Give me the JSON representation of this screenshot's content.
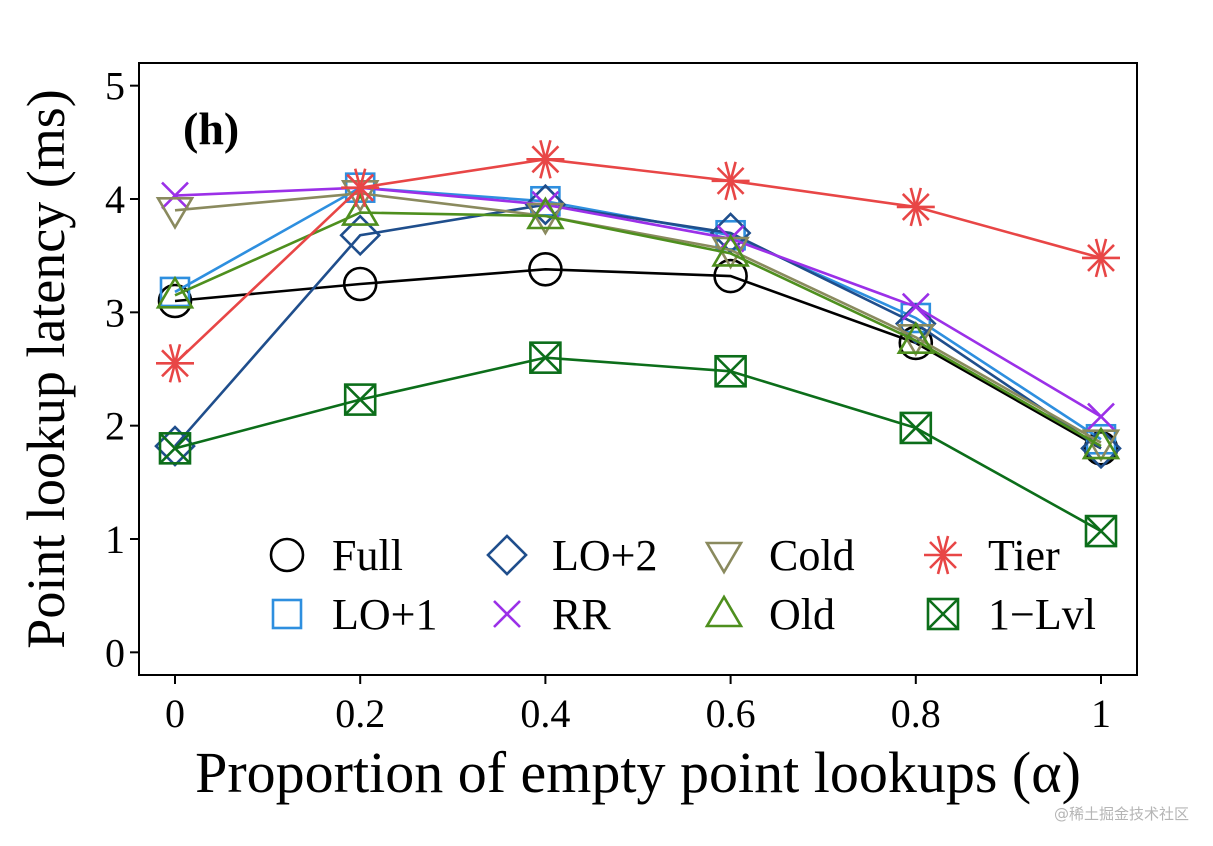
{
  "chart_data": {
    "type": "line",
    "panel_label": "(h)",
    "xlabel": "Proportion of empty point lookups (α)",
    "ylabel": "Point lookup latency (ms)",
    "x": [
      0,
      0.2,
      0.4,
      0.6,
      0.8,
      1
    ],
    "x_tick_labels": [
      "0",
      "0.2",
      "0.4",
      "0.6",
      "0.8",
      "1"
    ],
    "y_ticks": [
      0,
      1,
      2,
      3,
      4,
      5
    ],
    "y_tick_labels": [
      "0",
      "1",
      "2",
      "3",
      "4",
      "5"
    ],
    "xlim": [
      -0.04,
      1.04
    ],
    "ylim": [
      -0.2,
      5.2
    ],
    "grid": false,
    "legend_position": "bottom",
    "series": [
      {
        "name": "Full",
        "color": "#000000",
        "marker": "circle",
        "values": [
          3.1,
          3.25,
          3.38,
          3.32,
          2.73,
          1.8
        ]
      },
      {
        "name": "LO+1",
        "color": "#2e8fdf",
        "marker": "square",
        "values": [
          3.18,
          4.1,
          3.98,
          3.68,
          2.95,
          1.88
        ]
      },
      {
        "name": "LO+2",
        "color": "#1f4e8c",
        "marker": "diamond",
        "values": [
          1.82,
          3.68,
          3.95,
          3.7,
          2.9,
          1.8
        ]
      },
      {
        "name": "RR",
        "color": "#9b30e8",
        "marker": "x",
        "values": [
          4.03,
          4.1,
          3.95,
          3.65,
          3.05,
          2.08
        ]
      },
      {
        "name": "Cold",
        "color": "#8a8a5e",
        "marker": "triangle-down",
        "values": [
          3.9,
          4.05,
          3.85,
          3.55,
          2.78,
          1.85
        ]
      },
      {
        "name": "Old",
        "color": "#4e8f1e",
        "marker": "triangle-up",
        "values": [
          3.15,
          3.88,
          3.85,
          3.52,
          2.75,
          1.82
        ]
      },
      {
        "name": "Tier",
        "color": "#e84646",
        "marker": "asterisk",
        "values": [
          2.55,
          4.1,
          4.35,
          4.16,
          3.93,
          3.48
        ]
      },
      {
        "name": "1−Lvl",
        "color": "#0c6e1a",
        "marker": "boxed-x",
        "values": [
          1.8,
          2.23,
          2.6,
          2.48,
          1.98,
          1.07
        ]
      }
    ]
  },
  "watermark": "@稀土掘金技术社区"
}
